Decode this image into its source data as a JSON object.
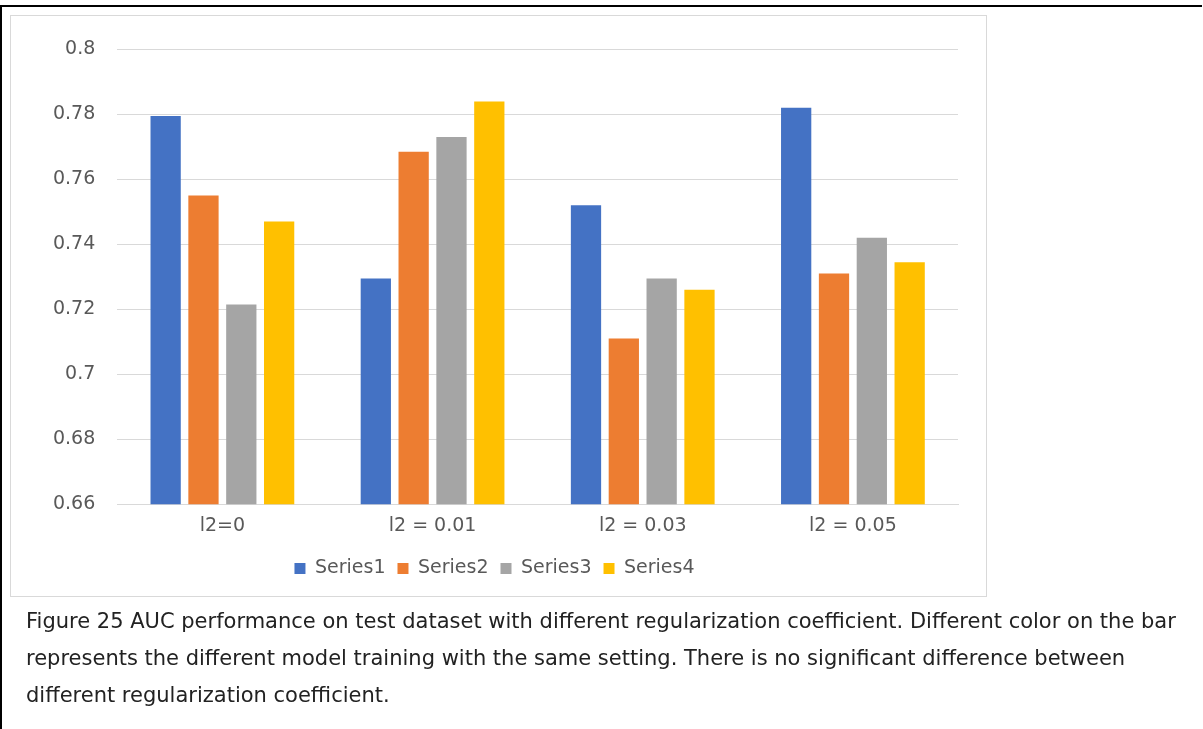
{
  "chart_data": {
    "type": "bar",
    "categories": [
      "l2=0",
      "l2 = 0.01",
      "l2 = 0.03",
      "l2 = 0.05"
    ],
    "series": [
      {
        "name": "Series1",
        "color": "#4472c4",
        "values": [
          0.7795,
          0.7295,
          0.752,
          0.782
        ]
      },
      {
        "name": "Series2",
        "color": "#ed7d31",
        "values": [
          0.755,
          0.7685,
          0.711,
          0.731
        ]
      },
      {
        "name": "Series3",
        "color": "#a5a5a5",
        "values": [
          0.7215,
          0.773,
          0.7295,
          0.742
        ]
      },
      {
        "name": "Series4",
        "color": "#ffc000",
        "values": [
          0.747,
          0.784,
          0.726,
          0.7345
        ]
      }
    ],
    "ylim": [
      0.66,
      0.8
    ],
    "yticks": [
      0.66,
      0.68,
      0.7,
      0.72,
      0.74,
      0.76,
      0.78,
      0.8
    ],
    "grid": "y",
    "legend": "bottom",
    "annotations": [
      "Figure 25 AUC performance on test dataset with different regularization coefficient. Different color on the bar represents the different model training with the same setting. There is no significant difference between different regularization coefficient."
    ]
  }
}
